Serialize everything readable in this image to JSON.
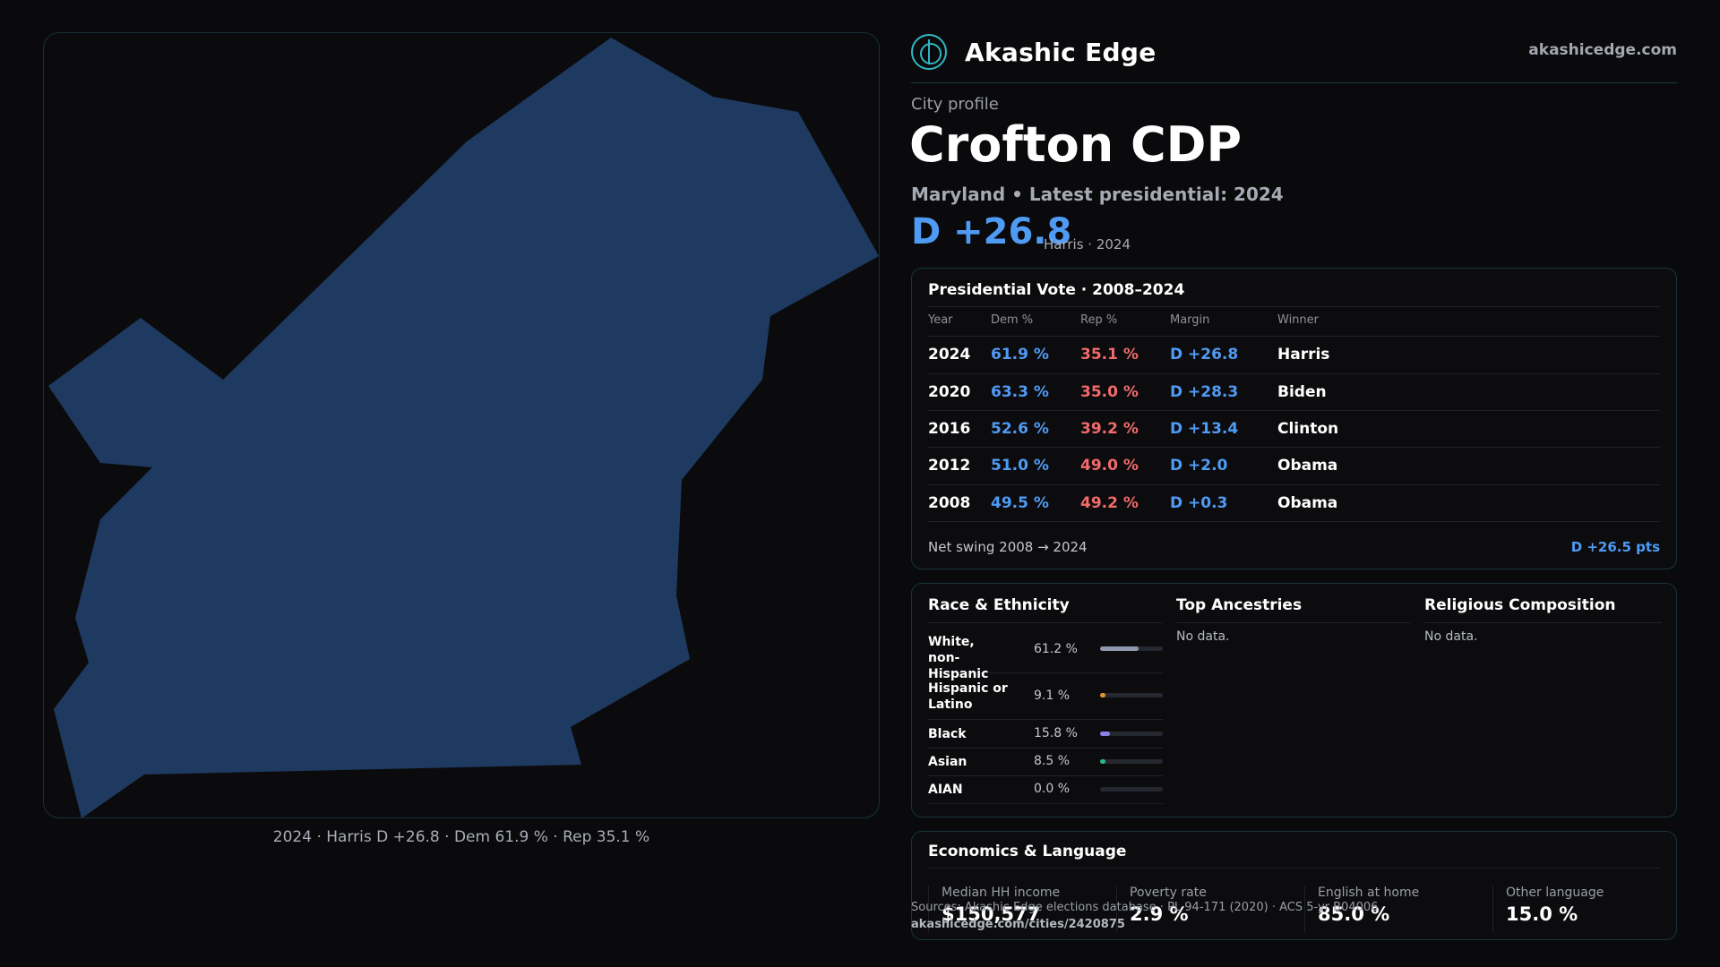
{
  "brand": {
    "name": "Akashic Edge",
    "url": "akashicedge.com",
    "logo_icon": "akashic-logo-icon"
  },
  "profile": {
    "eyebrow": "City profile",
    "title": "Crofton CDP",
    "subtitle": "Maryland • Latest presidential: 2024",
    "margin": "D +26.8",
    "margin_note": "Harris · 2024"
  },
  "map": {
    "caption": "2024 · Harris D +26.8 · Dem 61.9 % · Rep 35.1 %",
    "fill_color": "#1f3a60"
  },
  "presidential": {
    "title": "Presidential Vote · 2008–2024",
    "headers": [
      "Year",
      "Dem %",
      "Rep %",
      "Margin",
      "Winner"
    ],
    "rows": [
      {
        "year": "2024",
        "dem": "61.9 %",
        "rep": "35.1 %",
        "margin": "D +26.8",
        "winner": "Harris"
      },
      {
        "year": "2020",
        "dem": "63.3 %",
        "rep": "35.0 %",
        "margin": "D +28.3",
        "winner": "Biden"
      },
      {
        "year": "2016",
        "dem": "52.6 %",
        "rep": "39.2 %",
        "margin": "D +13.4",
        "winner": "Clinton"
      },
      {
        "year": "2012",
        "dem": "51.0 %",
        "rep": "49.0 %",
        "margin": "D +2.0",
        "winner": "Obama"
      },
      {
        "year": "2008",
        "dem": "49.5 %",
        "rep": "49.2 %",
        "margin": "D +0.3",
        "winner": "Obama"
      }
    ],
    "swing_label": "Net swing 2008 → 2024",
    "swing_value": "D +26.5 pts"
  },
  "race": {
    "title": "Race & Ethnicity",
    "items": [
      {
        "label": "White, non-Hispanic",
        "pct": "61.2 %",
        "value": 61.2,
        "color": "#8f98ad"
      },
      {
        "label": "Hispanic or Latino",
        "pct": "9.1 %",
        "value": 9.1,
        "color": "#e0962e"
      },
      {
        "label": "Black",
        "pct": "15.8 %",
        "value": 15.8,
        "color": "#8c7ee8"
      },
      {
        "label": "Asian",
        "pct": "8.5 %",
        "value": 8.5,
        "color": "#2fb884"
      },
      {
        "label": "AIAN",
        "pct": "0.0 %",
        "value": 0.0,
        "color": "#c0c4cc"
      }
    ]
  },
  "ancestries": {
    "title": "Top Ancestries",
    "empty": "No data."
  },
  "religion": {
    "title": "Religious Composition",
    "empty": "No data."
  },
  "economics": {
    "title": "Economics & Language",
    "stats": [
      {
        "label": "Median HH income",
        "value": "$150,577"
      },
      {
        "label": "Poverty rate",
        "value": "2.9 %"
      },
      {
        "label": "English at home",
        "value": "85.0 %"
      },
      {
        "label": "Other language",
        "value": "15.0 %"
      }
    ]
  },
  "footer": {
    "sources": "Sources: Akashic Edge elections database · PL 94-171 (2020) · ACS 5-yr B04006",
    "url": "akashicedge.com/cities/2420875"
  }
}
